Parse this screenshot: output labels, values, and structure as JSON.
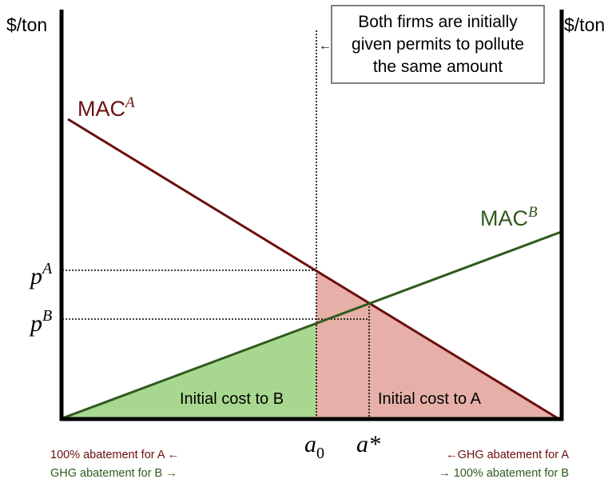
{
  "axes": {
    "left_unit": "$/ton",
    "right_unit": "$/ton"
  },
  "curves": {
    "mac_a": {
      "base": "MAC",
      "sup": "A",
      "color": "#6b0f0f"
    },
    "mac_b": {
      "base": "MAC",
      "sup": "B",
      "color": "#2f5a1c"
    }
  },
  "prices": {
    "pa": {
      "base": "p",
      "sup": "A"
    },
    "pb": {
      "base": "p",
      "sup": "B"
    }
  },
  "x_labels": {
    "a0": {
      "base": "a",
      "sub": "0"
    },
    "astar": {
      "base": "a*"
    }
  },
  "annotation": {
    "lines": [
      "Both firms are initially",
      "given permits to pollute",
      "the same amount"
    ],
    "arrow": "←"
  },
  "regions": {
    "cost_b": {
      "label": "Initial cost to B",
      "color": "#a8d890"
    },
    "cost_a": {
      "label": "Initial cost to A",
      "color": "#e6b0a8"
    }
  },
  "footnotes": {
    "bottom_left": [
      {
        "text": "100% abatement for A ←",
        "color": "#6b0f0f"
      },
      {
        "text": "GHG abatement for B →",
        "color": "#2f5a1c"
      }
    ],
    "bottom_right": [
      {
        "text": "←GHG abatement for A",
        "color": "#6b0f0f"
      },
      {
        "text": "→ 100% abatement for B",
        "color": "#2f5a1c"
      }
    ]
  }
}
